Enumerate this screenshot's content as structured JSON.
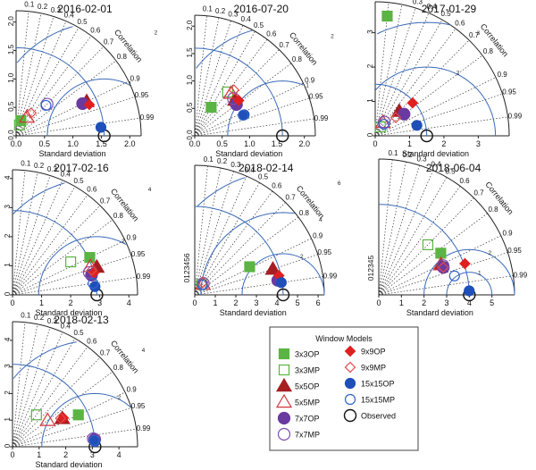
{
  "figure": {
    "legend_title": "Window Models",
    "legend": [
      {
        "key": "3x3OP",
        "label": "3x3OP",
        "shape": "square",
        "filled": true,
        "color": "#5bb443"
      },
      {
        "key": "3x3MP",
        "label": "3x3MP",
        "shape": "square",
        "filled": false,
        "color": "#5bb443"
      },
      {
        "key": "5x5OP",
        "label": "5x5OP",
        "shape": "triangle",
        "filled": true,
        "color": "#a61e22"
      },
      {
        "key": "5x5MP",
        "label": "5x5MP",
        "shape": "triangle",
        "filled": false,
        "color": "#d0353a"
      },
      {
        "key": "7x7OP",
        "label": "7x7OP",
        "shape": "circle-big",
        "filled": true,
        "color": "#6a3aa0"
      },
      {
        "key": "7x7MP",
        "label": "7x7MP",
        "shape": "circle-big",
        "filled": false,
        "color": "#7a4fb0"
      },
      {
        "key": "9x9OP",
        "label": "9x9OP",
        "shape": "diamond",
        "filled": true,
        "color": "#e02020"
      },
      {
        "key": "9x9MP",
        "label": "9x9MP",
        "shape": "diamond",
        "filled": false,
        "color": "#e04a4a"
      },
      {
        "key": "15x15OP",
        "label": "15x15OP",
        "shape": "circle",
        "filled": true,
        "color": "#1f4fb8"
      },
      {
        "key": "15x15MP",
        "label": "15x15MP",
        "shape": "circle",
        "filled": false,
        "color": "#2f63c8"
      },
      {
        "key": "Observed",
        "label": "Observed",
        "shape": "ring",
        "filled": false,
        "color": "#111111"
      }
    ],
    "correlation_ticks": [
      {
        "r": 0.1,
        "label": "0.1"
      },
      {
        "r": 0.2,
        "label": "0.2"
      },
      {
        "r": 0.3,
        "label": "0.3"
      },
      {
        "r": 0.4,
        "label": "0.4"
      },
      {
        "r": 0.5,
        "label": "0.5"
      },
      {
        "r": 0.6,
        "label": "0.6"
      },
      {
        "r": 0.7,
        "label": "0.7"
      },
      {
        "r": 0.8,
        "label": "0.8"
      },
      {
        "r": 0.9,
        "label": "0.9"
      },
      {
        "r": 0.95,
        "label": "0.95"
      },
      {
        "r": 0.99,
        "label": "0.99"
      }
    ],
    "correlation_label": "Correlation",
    "std_label": "Standard deviation"
  },
  "chart_data": [
    {
      "type": "scatter",
      "title": "2016-02-01",
      "xlim": [
        0,
        2.2
      ],
      "obs_sd": 1.55,
      "xticks": [
        "0.0",
        "0.5",
        "1.0",
        "1.5",
        "2.0"
      ],
      "yticks": [
        "0.0",
        "0.5",
        "1.0",
        "1.5",
        "2.0"
      ],
      "yaxis_compact": false,
      "rms_arcs": [
        {
          "r": 1,
          "label": "1"
        },
        {
          "r": 2,
          "label": "2"
        }
      ],
      "ylabel": "",
      "xlabel": "Standard deviation",
      "points": [
        {
          "model": "3x3OP",
          "sd": 0.28,
          "r": 0.3
        },
        {
          "model": "3x3MP",
          "sd": 0.2,
          "r": 0.3
        },
        {
          "model": "5x5OP",
          "sd": 1.38,
          "r": 0.9
        },
        {
          "model": "5x5MP",
          "sd": 0.38,
          "r": 0.5
        },
        {
          "model": "7x7OP",
          "sd": 1.3,
          "r": 0.9
        },
        {
          "model": "7x7MP",
          "sd": 0.78,
          "r": 0.7
        },
        {
          "model": "9x9OP",
          "sd": 1.4,
          "r": 0.92
        },
        {
          "model": "9x9MP",
          "sd": 0.48,
          "r": 0.55
        },
        {
          "model": "15x15OP",
          "sd": 1.5,
          "r": 0.995
        },
        {
          "model": "15x15MP",
          "sd": 0.75,
          "r": 0.7
        }
      ]
    },
    {
      "type": "scatter",
      "title": "2016-07-20",
      "xlim": [
        0,
        2.2
      ],
      "obs_sd": 1.6,
      "xticks": [
        "0.0",
        "0.5",
        "1.0",
        "1.5",
        "2.0"
      ],
      "yticks": [
        "0.0",
        "0.5",
        "1.0",
        "1.5",
        "2.0"
      ],
      "yaxis_compact": false,
      "rms_arcs": [
        {
          "r": 1,
          "label": "1"
        },
        {
          "r": 2,
          "label": "2"
        }
      ],
      "ylabel": "",
      "xlabel": "Standard deviation",
      "points": [
        {
          "model": "3x3OP",
          "sd": 0.6,
          "r": 0.5
        },
        {
          "model": "3x3MP",
          "sd": 1.0,
          "r": 0.6
        },
        {
          "model": "5x5OP",
          "sd": 0.98,
          "r": 0.75
        },
        {
          "model": "5x5MP",
          "sd": 1.02,
          "r": 0.65
        },
        {
          "model": "7x7OP",
          "sd": 0.95,
          "r": 0.8
        },
        {
          "model": "7x7MP",
          "sd": 0.98,
          "r": 0.72
        },
        {
          "model": "9x9OP",
          "sd": 1.03,
          "r": 0.78
        },
        {
          "model": "9x9MP",
          "sd": 1.1,
          "r": 0.65
        },
        {
          "model": "15x15OP",
          "sd": 0.98,
          "r": 0.92
        },
        {
          "model": "15x15MP",
          "sd": 0.96,
          "r": 0.92
        }
      ]
    },
    {
      "type": "scatter",
      "title": "2017-01-29",
      "xlim": [
        0,
        3.9
      ],
      "obs_sd": 1.5,
      "xticks": [
        "0",
        "1",
        "2",
        "3"
      ],
      "yticks": [
        "0",
        "1",
        "2",
        "3"
      ],
      "yaxis_compact": false,
      "rms_arcs": [
        {
          "r": 2,
          "label": "2"
        },
        {
          "r": 3.3,
          "label": "3"
        }
      ],
      "ylabel": "",
      "xlabel": "Standard deviation",
      "points": [
        {
          "model": "3x3OP",
          "sd": 3.5,
          "r": 0.1
        },
        {
          "model": "3x3MP",
          "sd": 0.3,
          "r": 0.5
        },
        {
          "model": "5x5OP",
          "sd": 1.0,
          "r": 0.7
        },
        {
          "model": "5x5MP",
          "sd": 0.45,
          "r": 0.5
        },
        {
          "model": "7x7OP",
          "sd": 1.05,
          "r": 0.8
        },
        {
          "model": "7x7MP",
          "sd": 0.48,
          "r": 0.55
        },
        {
          "model": "9x9OP",
          "sd": 1.45,
          "r": 0.75
        },
        {
          "model": "9x9MP",
          "sd": 0.8,
          "r": 0.75
        },
        {
          "model": "15x15OP",
          "sd": 1.25,
          "r": 0.97
        },
        {
          "model": "15x15MP",
          "sd": 0.42,
          "r": 0.6
        }
      ]
    },
    {
      "type": "scatter",
      "title": "2017-02-16",
      "xlim": [
        0,
        4.3
      ],
      "obs_sd": 2.9,
      "xticks": [
        "0",
        "1",
        "2",
        "3",
        "4"
      ],
      "yticks": [
        "0",
        "1",
        "2",
        "3",
        "4"
      ],
      "yaxis_compact": false,
      "rms_arcs": [
        {
          "r": 2,
          "label": "2"
        },
        {
          "r": 4,
          "label": "4"
        }
      ],
      "ylabel": "",
      "xlabel": "Standard deviation",
      "points": [
        {
          "model": "3x3OP",
          "sd": 2.95,
          "r": 0.9
        },
        {
          "model": "3x3MP",
          "sd": 2.3,
          "r": 0.87
        },
        {
          "model": "5x5OP",
          "sd": 3.05,
          "r": 0.95
        },
        {
          "model": "5x5MP",
          "sd": 2.85,
          "r": 0.94
        },
        {
          "model": "7x7OP",
          "sd": 2.8,
          "r": 0.97
        },
        {
          "model": "7x7MP",
          "sd": 2.75,
          "r": 0.96
        },
        {
          "model": "9x9OP",
          "sd": 2.9,
          "r": 0.965
        },
        {
          "model": "9x9MP",
          "sd": 2.85,
          "r": 0.955
        },
        {
          "model": "15x15OP",
          "sd": 2.85,
          "r": 0.995
        },
        {
          "model": "15x15MP",
          "sd": 2.8,
          "r": 0.99
        }
      ]
    },
    {
      "type": "scatter",
      "title": "2018-02-14",
      "xlim": [
        0,
        6.3
      ],
      "obs_sd": 4.3,
      "xticks": [
        "0",
        "1",
        "2",
        "3",
        "4",
        "5",
        "6"
      ],
      "yticks": [
        "0",
        "1",
        "2",
        "3",
        "4",
        "5",
        "6"
      ],
      "yaxis_compact": true,
      "yaxis_text": "0123456",
      "rms_arcs": [
        {
          "r": 2,
          "label": "2"
        },
        {
          "r": 4,
          "label": "4"
        },
        {
          "r": 6,
          "label": "6"
        }
      ],
      "ylabel": "",
      "xlabel": "Standard deviation",
      "points": [
        {
          "model": "3x3OP",
          "sd": 3.0,
          "r": 0.89
        },
        {
          "model": "3x3MP",
          "sd": 0.6,
          "r": 0.55
        },
        {
          "model": "5x5OP",
          "sd": 4.0,
          "r": 0.95
        },
        {
          "model": "5x5MP",
          "sd": 0.65,
          "r": 0.6
        },
        {
          "model": "7x7OP",
          "sd": 4.1,
          "r": 0.985
        },
        {
          "model": "7x7MP",
          "sd": 0.7,
          "r": 0.6
        },
        {
          "model": "9x9OP",
          "sd": 4.2,
          "r": 0.975
        },
        {
          "model": "9x9MP",
          "sd": 0.72,
          "r": 0.55
        },
        {
          "model": "15x15OP",
          "sd": 4.25,
          "r": 0.99
        },
        {
          "model": "15x15MP",
          "sd": 0.62,
          "r": 0.6
        }
      ]
    },
    {
      "type": "scatter",
      "title": "2018-06-04",
      "xlim": [
        0,
        6.0
      ],
      "obs_sd": 4.0,
      "xticks": [
        "0",
        "1",
        "2",
        "3",
        "4",
        "5"
      ],
      "yticks": [
        "0",
        "1",
        "2",
        "3",
        "4",
        "5"
      ],
      "yaxis_compact": true,
      "yaxis_text": "012345",
      "rms_arcs": [
        {
          "r": 1,
          "label": "1"
        },
        {
          "r": 2,
          "label": "2"
        }
      ],
      "ylabel": "",
      "xlabel": "Standard deviation",
      "points": [
        {
          "model": "3x3OP",
          "sd": 3.3,
          "r": 0.83
        },
        {
          "model": "3x3MP",
          "sd": 3.1,
          "r": 0.7
        },
        {
          "model": "5x5OP",
          "sd": 3.05,
          "r": 0.9
        },
        {
          "model": "5x5MP",
          "sd": 3.05,
          "r": 0.9
        },
        {
          "model": "7x7OP",
          "sd": 3.1,
          "r": 0.92
        },
        {
          "model": "7x7MP",
          "sd": 3.12,
          "r": 0.91
        },
        {
          "model": "9x9OP",
          "sd": 4.05,
          "r": 0.94
        },
        {
          "model": "9x9MP",
          "sd": 3.1,
          "r": 0.92
        },
        {
          "model": "15x15OP",
          "sd": 4.0,
          "r": 0.999
        },
        {
          "model": "15x15MP",
          "sd": 3.45,
          "r": 0.97
        }
      ]
    },
    {
      "type": "scatter",
      "title": "2018-02-13",
      "xlim": [
        0,
        4.7
      ],
      "obs_sd": 3.1,
      "xticks": [
        "0",
        "1",
        "2",
        "3",
        "4"
      ],
      "yticks": [
        "0",
        "1",
        "2",
        "3",
        "4"
      ],
      "yaxis_compact": false,
      "rms_arcs": [
        {
          "r": 2,
          "label": "2"
        },
        {
          "r": 4,
          "label": "4"
        }
      ],
      "ylabel": "",
      "xlabel": "Standard deviation",
      "points": [
        {
          "model": "3x3OP",
          "sd": 2.75,
          "r": 0.9
        },
        {
          "model": "3x3MP",
          "sd": 1.5,
          "r": 0.6
        },
        {
          "model": "5x5OP",
          "sd": 2.15,
          "r": 0.87
        },
        {
          "model": "5x5MP",
          "sd": 1.65,
          "r": 0.8
        },
        {
          "model": "7x7OP",
          "sd": 3.1,
          "r": 0.996
        },
        {
          "model": "7x7MP",
          "sd": 3.05,
          "r": 0.995
        },
        {
          "model": "9x9OP",
          "sd": 2.2,
          "r": 0.87
        },
        {
          "model": "9x9MP",
          "sd": 2.1,
          "r": 0.86
        },
        {
          "model": "15x15OP",
          "sd": 3.1,
          "r": 0.998
        },
        {
          "model": "15x15MP",
          "sd": 3.08,
          "r": 0.997
        }
      ]
    }
  ]
}
